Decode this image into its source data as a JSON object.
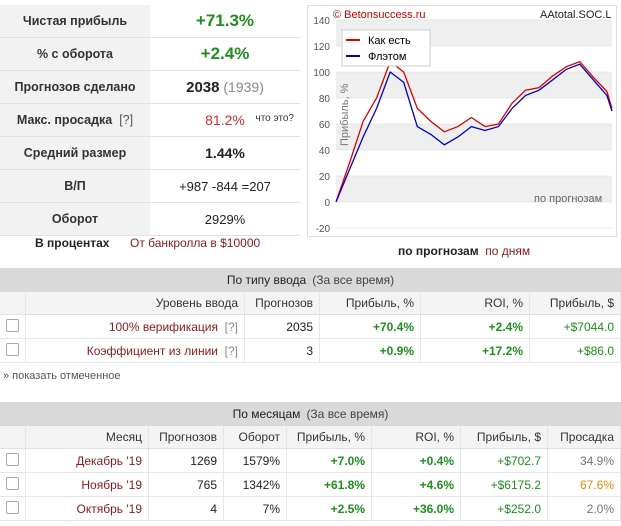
{
  "stats": [
    {
      "label": "Чистая прибыль",
      "value": "+71.3%"
    },
    {
      "label": "% с оборота",
      "value": "+2.4%"
    },
    {
      "label": "Прогнозов сделано",
      "value": "2038",
      "extra": "(1939)"
    },
    {
      "label": "Макс. просадка",
      "help": "[?]",
      "value": "81.2%",
      "note": "что это?"
    },
    {
      "label": "Средний размер",
      "value": "1.44%"
    },
    {
      "label": "В/П",
      "value": "+987 -844 =207"
    },
    {
      "label": "Оборот",
      "value": "2929%"
    }
  ],
  "modes": {
    "percent": "В процентах",
    "bankroll": "От банкролла в $10000"
  },
  "chart": {
    "watermark": "© Betonsuccess.ru",
    "name": "AAtotal.SOC.L",
    "ylabel": "Прибыль, %",
    "corner_label": "по прогнозам",
    "legend": [
      "Как есть",
      "Флэтом"
    ],
    "axis_mode": "по прогнозам",
    "axis_mode_alt": "по дням"
  },
  "chart_data": {
    "type": "line",
    "ylabel": "Прибыль, %",
    "ylim": [
      -20,
      140
    ],
    "yticks": [
      -20,
      0,
      20,
      40,
      60,
      80,
      100,
      120,
      140
    ],
    "x": [
      0,
      100,
      200,
      300,
      400,
      500,
      600,
      700,
      800,
      900,
      1000,
      1100,
      1200,
      1300,
      1400,
      1500,
      1600,
      1700,
      1800,
      1900,
      2000,
      2038
    ],
    "series": [
      {
        "name": "Как есть",
        "color": "#e00000",
        "values": [
          0,
          30,
          62,
          80,
          108,
          100,
          72,
          62,
          54,
          58,
          65,
          58,
          60,
          76,
          86,
          88,
          97,
          104,
          108,
          96,
          85,
          72
        ]
      },
      {
        "name": "Флэтом",
        "color": "#0000cc",
        "values": [
          0,
          25,
          50,
          72,
          100,
          92,
          58,
          52,
          44,
          50,
          58,
          55,
          58,
          72,
          82,
          86,
          94,
          102,
          106,
          94,
          82,
          70
        ]
      }
    ]
  },
  "entry": {
    "title": "По типу ввода",
    "subtitle": "(За все время)",
    "headers": [
      "",
      "Уровень ввода",
      "Прогнозов",
      "Прибыль, %",
      "ROI, %",
      "Прибыль, $"
    ],
    "rows": [
      {
        "level": "100% верификация",
        "help": "[?]",
        "count": "2035",
        "profit": "+70.4%",
        "roi": "+2.4%",
        "usd": "+$7044.0"
      },
      {
        "level": "Коэффициент из линии",
        "help": "[?]",
        "count": "3",
        "profit": "+0.9%",
        "roi": "+17.2%",
        "usd": "+$86.0"
      }
    ],
    "show_marked": "» показать отмеченное"
  },
  "months": {
    "title": "По месяцам",
    "subtitle": "(За все время)",
    "headers": [
      "",
      "Месяц",
      "Прогнозов",
      "Оборот",
      "Прибыль, %",
      "ROI, %",
      "Прибыль, $",
      "Просадка"
    ],
    "rows": [
      {
        "month": "Декабрь '19",
        "count": "1269",
        "turnover": "1579%",
        "profit": "+7.0%",
        "roi": "+0.4%",
        "usd": "+$702.7",
        "dd": "34.9%",
        "dd_color": "#777777"
      },
      {
        "month": "Ноябрь '19",
        "count": "765",
        "turnover": "1342%",
        "profit": "+61.8%",
        "roi": "+4.6%",
        "usd": "+$6175.2",
        "dd": "67.6%",
        "dd_color": "#e68a00"
      },
      {
        "month": "Октябрь '19",
        "count": "4",
        "turnover": "7%",
        "profit": "+2.5%",
        "roi": "+36.0%",
        "usd": "+$252.0",
        "dd": "2.0%",
        "dd_color": "#777777"
      }
    ]
  }
}
